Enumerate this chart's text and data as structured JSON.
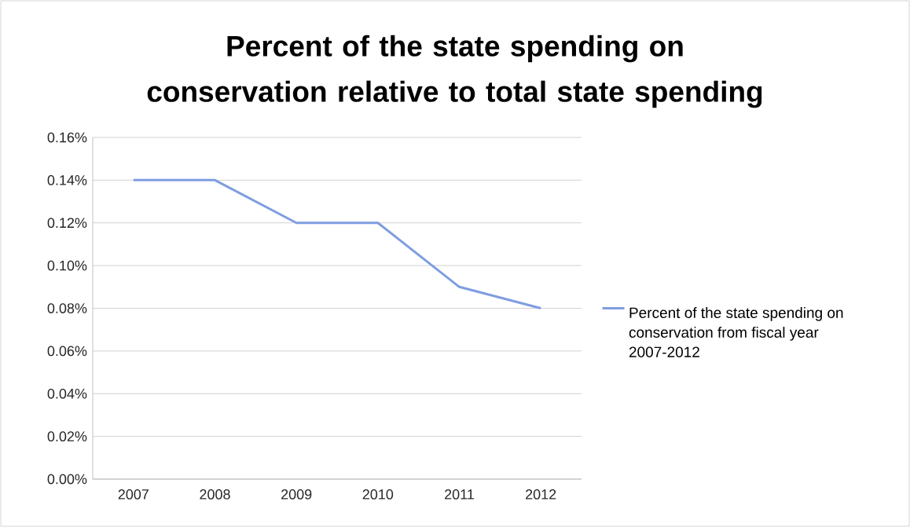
{
  "chart_data": {
    "type": "line",
    "title": "Percent of the state spending on conservation relative to total state spending",
    "categories": [
      "2007",
      "2008",
      "2009",
      "2010",
      "2011",
      "2012"
    ],
    "series": [
      {
        "name": "Percent of the state spending on conservation from fiscal year 2007-2012",
        "color": "#7f9de0",
        "values": [
          0.14,
          0.14,
          0.12,
          0.12,
          0.09,
          0.08
        ]
      }
    ],
    "ylim": [
      0,
      0.16
    ],
    "yticks": [
      {
        "value": 0,
        "label": "0.00%"
      },
      {
        "value": 0.02,
        "label": "0.02%"
      },
      {
        "value": 0.04,
        "label": "0.04%"
      },
      {
        "value": 0.06,
        "label": "0.06%"
      },
      {
        "value": 0.08,
        "label": "0.08%"
      },
      {
        "value": 0.1,
        "label": "0.10%"
      },
      {
        "value": 0.12,
        "label": "0.12%"
      },
      {
        "value": 0.14,
        "label": "0.14%"
      },
      {
        "value": 0.16,
        "label": "0.16%"
      }
    ],
    "grid": "y",
    "legend": "right",
    "marker": "none",
    "line_style": "solid"
  }
}
